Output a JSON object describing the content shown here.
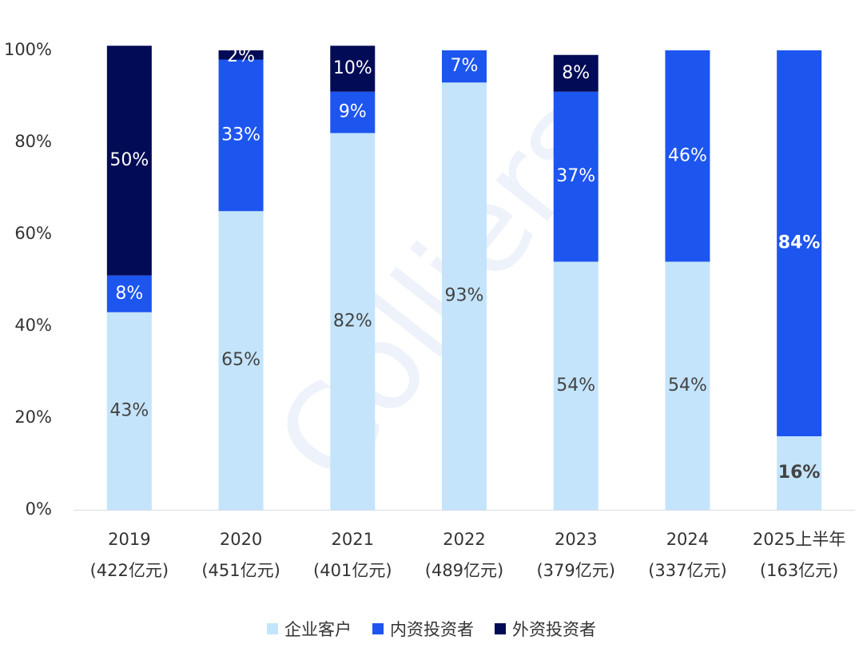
{
  "chart_data": {
    "type": "bar",
    "stacked": true,
    "categories": [
      {
        "line1": "2019",
        "line2": "(422亿元)"
      },
      {
        "line1": "2020",
        "line2": "(451亿元)"
      },
      {
        "line1": "2021",
        "line2": "(401亿元)"
      },
      {
        "line1": "2022",
        "line2": "(489亿元)"
      },
      {
        "line1": "2023",
        "line2": "(379亿元)"
      },
      {
        "line1": "2024",
        "line2": "(337亿元)"
      },
      {
        "line1": "2025上半年",
        "line2": "(163亿元)"
      }
    ],
    "series": [
      {
        "name": "企业客户",
        "color": "#c4e4fb",
        "label_color": "#444444",
        "values": [
          43,
          65,
          82,
          93,
          54,
          54,
          16
        ],
        "labels": [
          "43%",
          "65%",
          "82%",
          "93%",
          "54%",
          "54%",
          "16%"
        ]
      },
      {
        "name": "内资投资者",
        "color": "#1d55ef",
        "label_color": "#ffffff",
        "values": [
          8,
          33,
          9,
          7,
          37,
          46,
          84
        ],
        "labels": [
          "8%",
          "33%",
          "9%",
          "7%",
          "37%",
          "46%",
          "84%"
        ]
      },
      {
        "name": "外资投资者",
        "color": "#020b55",
        "label_color": "#ffffff",
        "values": [
          50,
          2,
          10,
          0,
          8,
          0,
          0
        ],
        "labels": [
          "50%",
          "2%",
          "10%",
          "",
          "8%",
          "",
          ""
        ]
      }
    ],
    "bold_category_index": 6,
    "yticks": [
      "0%",
      "20%",
      "40%",
      "60%",
      "80%",
      "100%"
    ],
    "ylim": [
      0,
      100
    ],
    "legend_position": "bottom",
    "watermark": "Colliers"
  }
}
